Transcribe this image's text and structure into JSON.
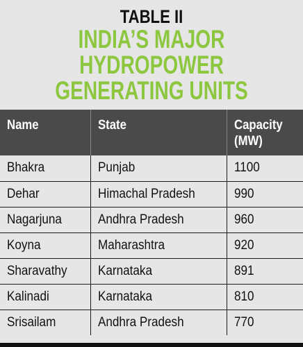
{
  "table_label": "TABLE II",
  "title_lines": [
    "INDIA’S MAJOR",
    "HYDROPOWER",
    "GENERATING UNITS"
  ],
  "columns": [
    "Name",
    "State",
    "Capacity (MW)"
  ],
  "rows": [
    [
      "Bhakra",
      "Punjab",
      "1100"
    ],
    [
      "Dehar",
      "Himachal Pradesh",
      "990"
    ],
    [
      "Nagarjuna",
      "Andhra Pradesh",
      "960"
    ],
    [
      "Koyna",
      "Maharashtra",
      "920"
    ],
    [
      "Sharavathy",
      "Karnataka",
      "891"
    ],
    [
      "Kalinadi",
      "Karnataka",
      "810"
    ],
    [
      "Srisailam",
      "Andhra Pradesh",
      "770"
    ]
  ],
  "colors": {
    "title_green": "#8dc63f",
    "header_bg": "#4a4a4a",
    "body_bg": "#e6e6e6"
  }
}
